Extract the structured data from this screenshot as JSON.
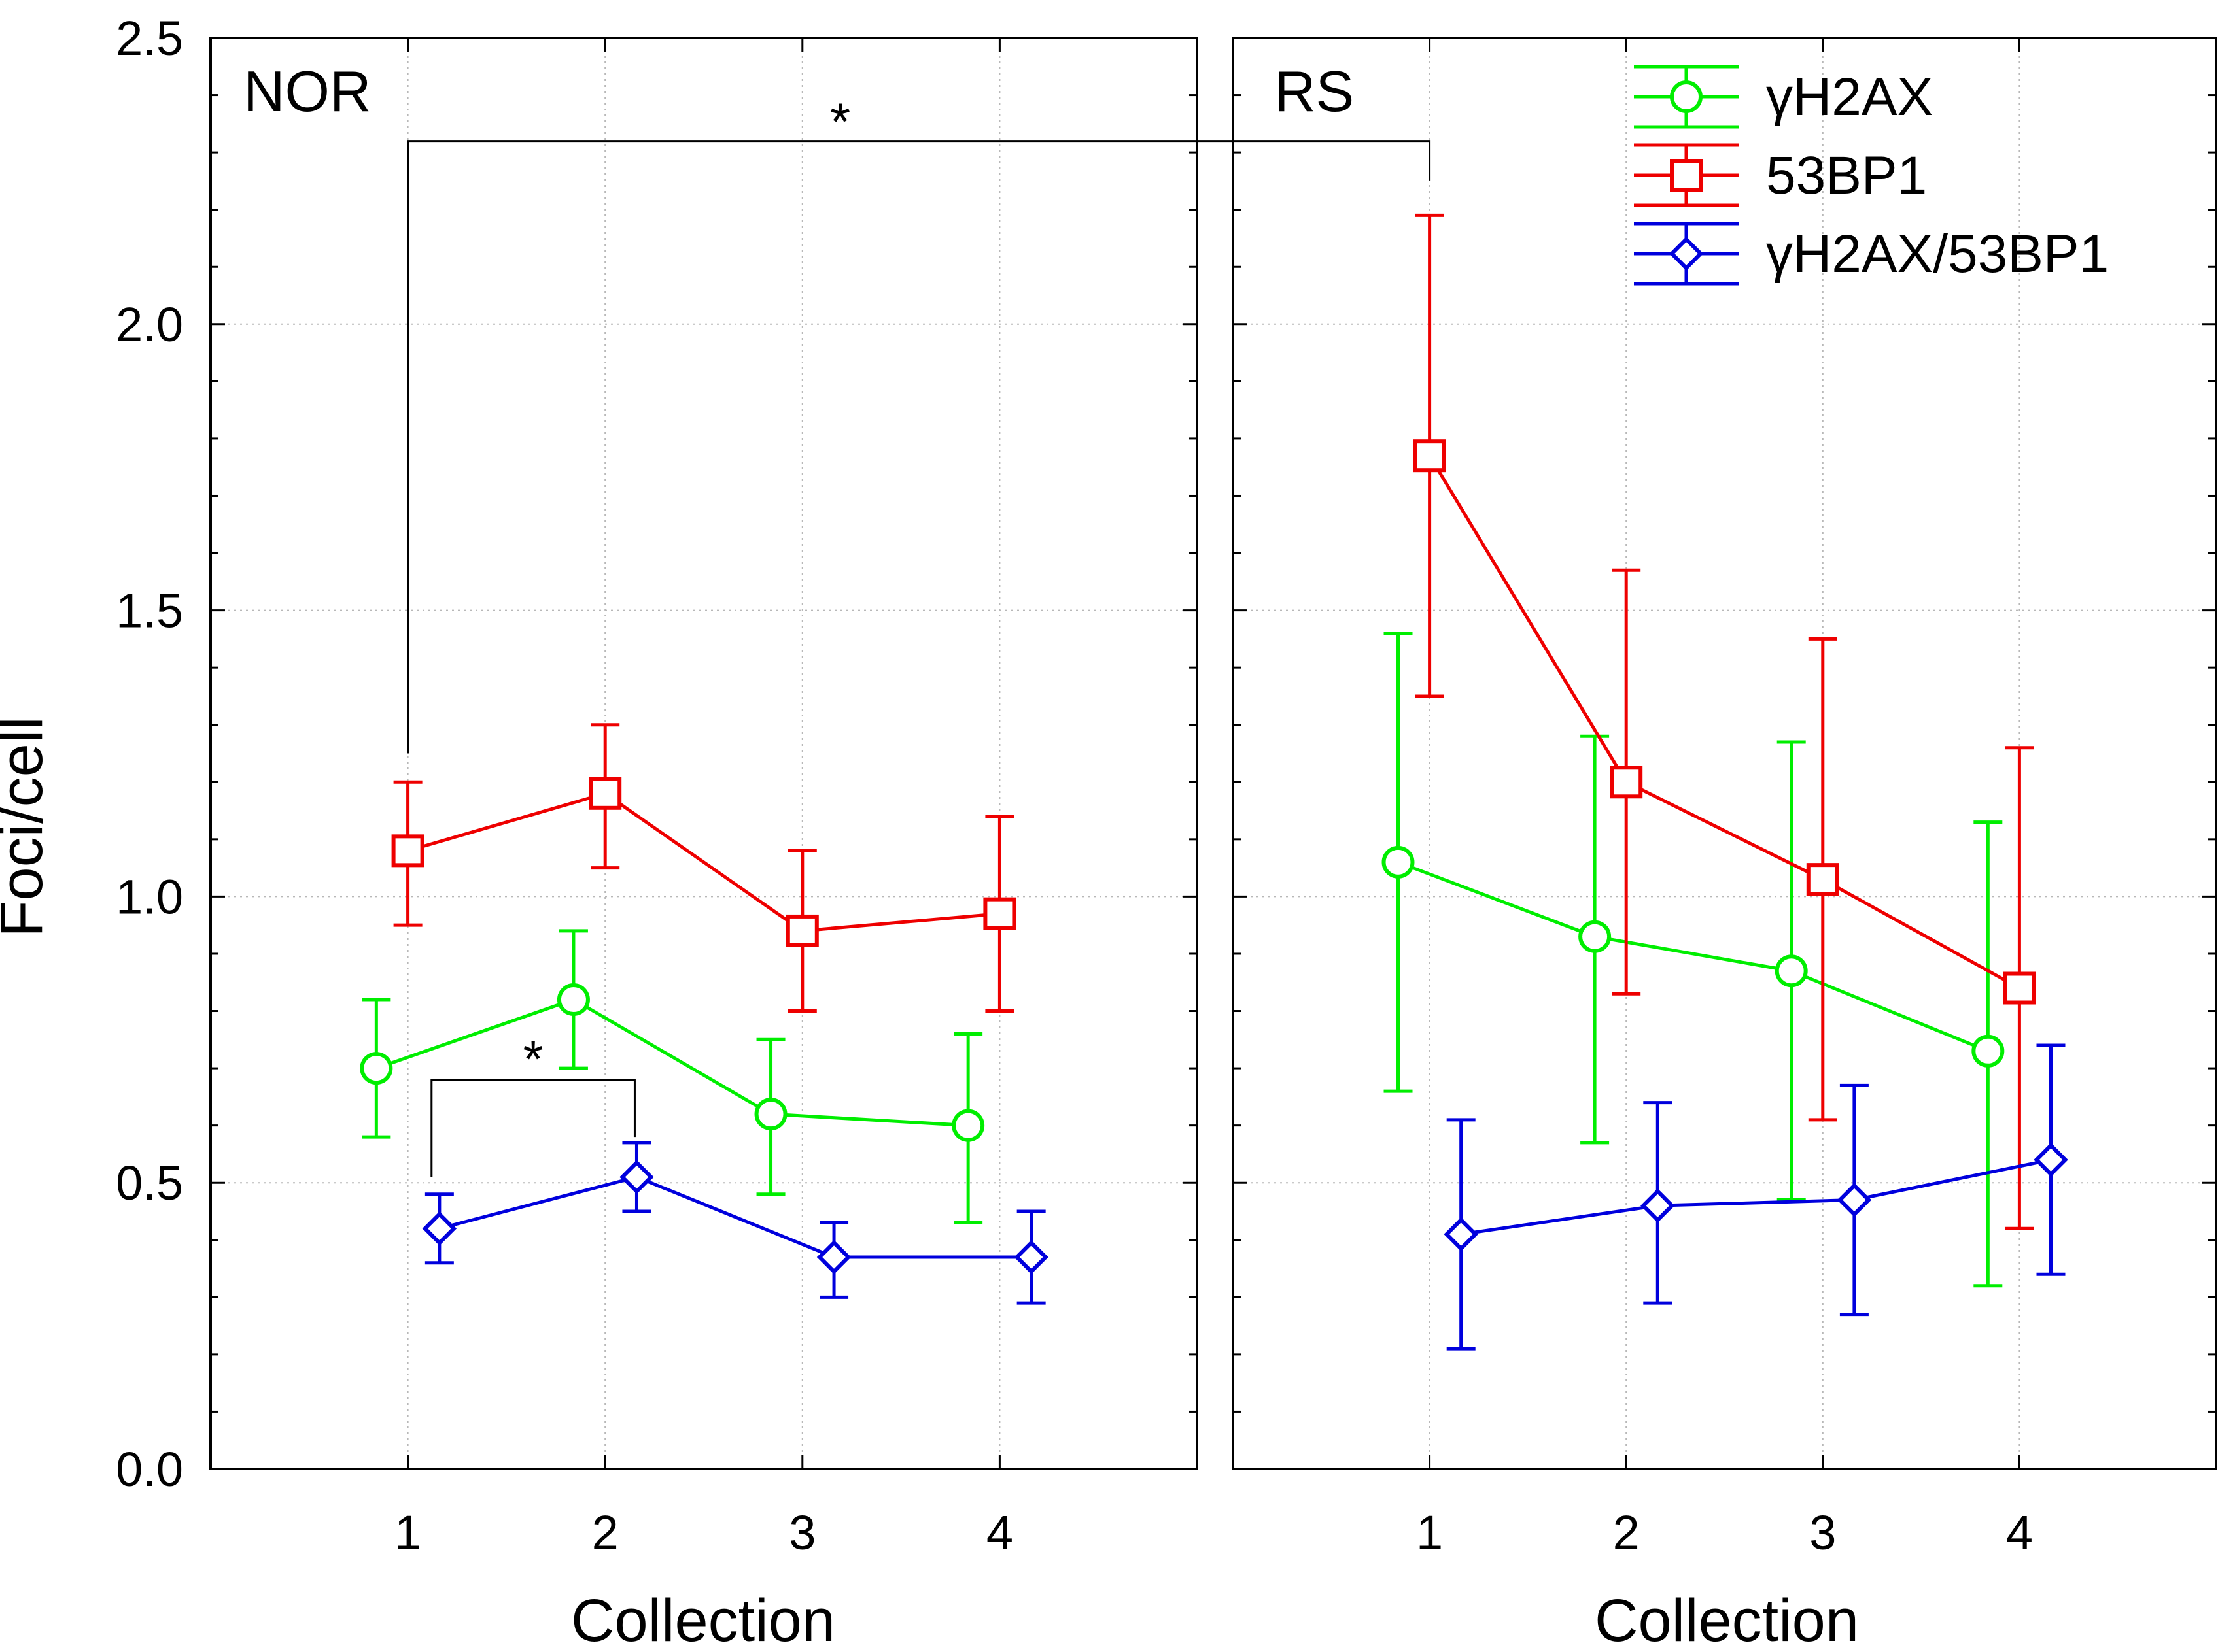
{
  "chart_data": {
    "type": "line",
    "ylabel": "Foci/cell",
    "xlabel": "Collection",
    "ylim": [
      0,
      2.5
    ],
    "yticks": [
      "0.0",
      "0.5",
      "1.0",
      "1.5",
      "2.0",
      "2.5"
    ],
    "ytick_values": [
      0,
      0.5,
      1.0,
      1.5,
      2.0,
      2.5
    ],
    "xlim": [
      0,
      5
    ],
    "categories": [
      "1",
      "2",
      "3",
      "4"
    ],
    "panels": [
      {
        "name": "NOR",
        "series": [
          {
            "name": "γH2AX",
            "color": "#00ee00",
            "marker": "circle",
            "offset": -0.16,
            "values": [
              0.7,
              0.82,
              0.62,
              0.6
            ],
            "err_low": [
              0.58,
              0.7,
              0.48,
              0.43
            ],
            "err_high": [
              0.82,
              0.94,
              0.75,
              0.76
            ]
          },
          {
            "name": "53BP1",
            "color": "#ee0000",
            "marker": "square",
            "offset": 0.0,
            "values": [
              1.08,
              1.18,
              0.94,
              0.97
            ],
            "err_low": [
              0.95,
              1.05,
              0.8,
              0.8
            ],
            "err_high": [
              1.2,
              1.3,
              1.08,
              1.14
            ]
          },
          {
            "name": "γH2AX/53BP1",
            "color": "#0000dd",
            "marker": "diamond",
            "offset": 0.16,
            "values": [
              0.42,
              0.51,
              0.37,
              0.37
            ],
            "err_low": [
              0.36,
              0.45,
              0.3,
              0.29
            ],
            "err_high": [
              0.48,
              0.57,
              0.43,
              0.45
            ]
          }
        ]
      },
      {
        "name": "RS",
        "series": [
          {
            "name": "γH2AX",
            "color": "#00ee00",
            "marker": "circle",
            "offset": -0.16,
            "values": [
              1.06,
              0.93,
              0.87,
              0.73
            ],
            "err_low": [
              0.66,
              0.57,
              0.47,
              0.32
            ],
            "err_high": [
              1.46,
              1.28,
              1.27,
              1.13
            ]
          },
          {
            "name": "53BP1",
            "color": "#ee0000",
            "marker": "square",
            "offset": 0.0,
            "values": [
              1.77,
              1.2,
              1.03,
              0.84
            ],
            "err_low": [
              1.35,
              0.83,
              0.61,
              0.42
            ],
            "err_high": [
              2.19,
              1.57,
              1.45,
              1.26
            ]
          },
          {
            "name": "γH2AX/53BP1",
            "color": "#0000dd",
            "marker": "diamond",
            "offset": 0.16,
            "values": [
              0.41,
              0.46,
              0.47,
              0.54
            ],
            "err_low": [
              0.21,
              0.29,
              0.27,
              0.34
            ],
            "err_high": [
              0.61,
              0.64,
              0.67,
              0.74
            ]
          }
        ]
      }
    ],
    "legend": [
      {
        "label": "γH2AX",
        "color": "#00ee00",
        "marker": "circle"
      },
      {
        "label": "53BP1",
        "color": "#ee0000",
        "marker": "square"
      },
      {
        "label": "γH2AX/53BP1",
        "color": "#0000dd",
        "marker": "diamond"
      }
    ],
    "legend_location": "top-right",
    "annotations": [
      {
        "label": "*",
        "description": "NOR 53BP1 collection 1 vs RS 53BP1 collection 1"
      },
      {
        "label": "*",
        "description": "NOR γH2AX/53BP1 collection 1 vs collection 2"
      }
    ],
    "grid": true
  }
}
